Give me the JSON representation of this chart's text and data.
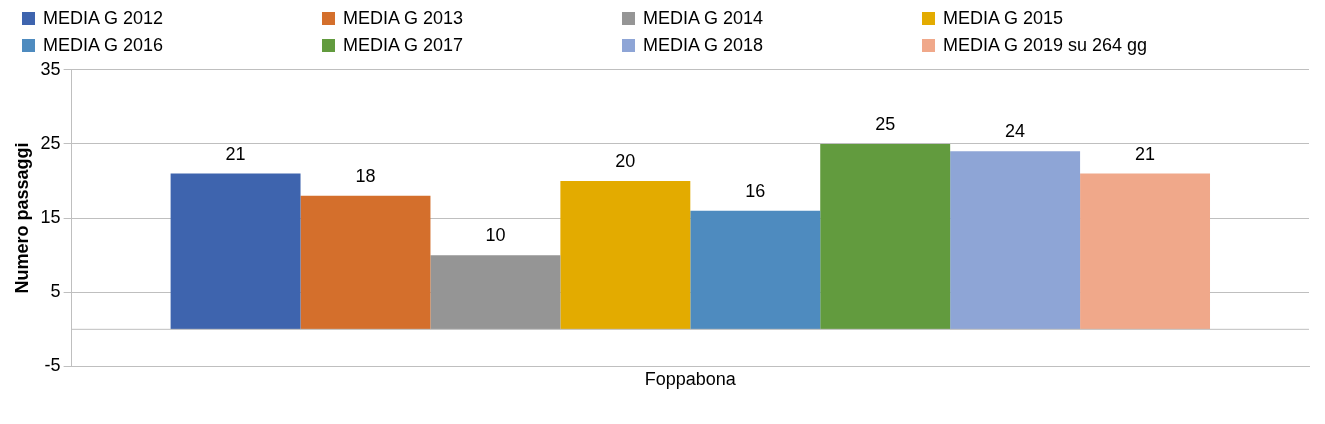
{
  "chart_data": {
    "type": "bar",
    "ylabel": "Numero passaggi",
    "categories": [
      "Foppabona"
    ],
    "series": [
      {
        "name": "MEDIA G 2012",
        "color": "#3e64ae",
        "values": [
          21
        ]
      },
      {
        "name": "MEDIA G 2013",
        "color": "#d46f2c",
        "values": [
          18
        ]
      },
      {
        "name": "MEDIA G 2014",
        "color": "#959595",
        "values": [
          10
        ]
      },
      {
        "name": "MEDIA G 2015",
        "color": "#e3ab00",
        "values": [
          20
        ]
      },
      {
        "name": "MEDIA G 2016",
        "color": "#4e8bbf",
        "values": [
          16
        ]
      },
      {
        "name": "MEDIA G 2017",
        "color": "#629b3e",
        "values": [
          25
        ]
      },
      {
        "name": "MEDIA G 2018",
        "color": "#8ea5d6",
        "values": [
          24
        ]
      },
      {
        "name": "MEDIA G 2019 su 264 gg",
        "color": "#f0a88a",
        "values": [
          21
        ]
      }
    ],
    "ylim": [
      -5,
      35
    ],
    "yticks": [
      -5,
      5,
      15,
      25,
      35
    ],
    "grid": "y",
    "legend": "top",
    "data_labels": true
  }
}
